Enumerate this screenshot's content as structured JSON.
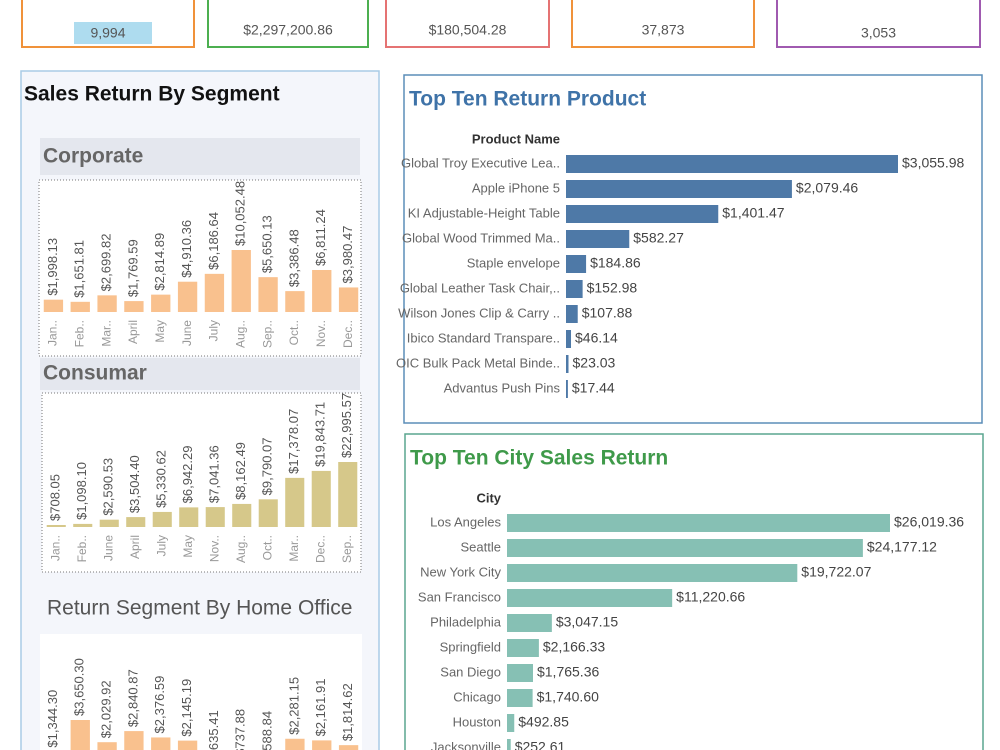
{
  "kpis": [
    {
      "value": "9,994",
      "color": "#f0923a"
    },
    {
      "value": "$2,297,200.86",
      "color": "#4caf50"
    },
    {
      "value": "$180,504.28",
      "color": "#e57373"
    },
    {
      "value": "37,873",
      "color": "#f0923a"
    },
    {
      "value": "3,053",
      "color": "#a05ab0"
    }
  ],
  "segment_panel": {
    "title": "Sales Return By Segment"
  },
  "chart_data": [
    {
      "type": "bar",
      "title": "Corporate",
      "color": "#f9c18e",
      "categories": [
        "Jan..",
        "Feb..",
        "Mar..",
        "April",
        "May",
        "June",
        "July",
        "Aug..",
        "Sep..",
        "Oct..",
        "Nov..",
        "Dec.."
      ],
      "values": [
        1998.13,
        1651.81,
        2699.82,
        1769.59,
        2814.89,
        4910.36,
        6186.64,
        10052.48,
        5650.13,
        3386.48,
        6811.24,
        3980.47
      ],
      "value_labels": [
        "$1,998.13",
        "$1,651.81",
        "$2,699.82",
        "$1,769.59",
        "$2,814.89",
        "$4,910.36",
        "$6,186.64",
        "$10,052.48",
        "$5,650.13",
        "$3,386.48",
        "$6,811.24",
        "$3,980.47"
      ]
    },
    {
      "type": "bar",
      "title": "Consumar",
      "color": "#d6c88a",
      "categories": [
        "Jan..",
        "Feb..",
        "June",
        "April",
        "July",
        "May",
        "Nov..",
        "Aug..",
        "Oct..",
        "Mar..",
        "Dec..",
        "Sep.."
      ],
      "values": [
        708.05,
        1098.1,
        2590.53,
        3504.4,
        5330.62,
        6942.29,
        7041.36,
        8162.49,
        9790.07,
        17378.07,
        19843.71,
        22995.57
      ],
      "value_labels": [
        "$708.05",
        "$1,098.10",
        "$2,590.53",
        "$3,504.40",
        "$5,330.62",
        "$6,942.29",
        "$7,041.36",
        "$8,162.49",
        "$9,790.07",
        "$17,378.07",
        "$19,843.71",
        "$22,995.57"
      ]
    },
    {
      "type": "bar",
      "title": "Return Segment By Home Office",
      "color": "#f9c18e",
      "values": [
        1344.3,
        3650.3,
        2029.92,
        2840.87,
        2376.59,
        2145.19,
        635.41,
        737.88,
        588.84,
        2281.15,
        2161.91,
        1814.62
      ],
      "value_labels": [
        "$1,344.30",
        "$3,650.30",
        "$2,029.92",
        "$2,840.87",
        "$2,376.59",
        "$2,145.19",
        "$635.41",
        "$737.88",
        "$588.84",
        "$2,281.15",
        "$2,161.91",
        "$1,814.62"
      ]
    },
    {
      "type": "barh",
      "title": "Top Ten Return Product",
      "axis_label": "Product Name",
      "color": "#4e79a7",
      "categories": [
        "Global Troy Executive Lea..",
        "Apple iPhone 5",
        "KI Adjustable-Height Table",
        "Global Wood Trimmed Ma..",
        "Staple envelope",
        "Global Leather Task Chair,..",
        "Wilson Jones Clip & Carry ..",
        "Ibico Standard Transpare..",
        "OIC Bulk Pack Metal Binde..",
        "Advantus Push Pins"
      ],
      "values": [
        3055.98,
        2079.46,
        1401.47,
        582.27,
        184.86,
        152.98,
        107.88,
        46.14,
        23.03,
        17.44
      ],
      "value_labels": [
        "$3,055.98",
        "$2,079.46",
        "$1,401.47",
        "$582.27",
        "$184.86",
        "$152.98",
        "$107.88",
        "$46.14",
        "$23.03",
        "$17.44"
      ]
    },
    {
      "type": "barh",
      "title": "Top Ten City Sales Return",
      "axis_label": "City",
      "color": "#86c0b4",
      "categories": [
        "Los Angeles",
        "Seattle",
        "New York City",
        "San Francisco",
        "Philadelphia",
        "Springfield",
        "San Diego",
        "Chicago",
        "Houston",
        "Jacksonville"
      ],
      "values": [
        26019.36,
        24177.12,
        19722.07,
        11220.66,
        3047.15,
        2166.33,
        1765.36,
        1740.6,
        492.85,
        252.61
      ],
      "value_labels": [
        "$26,019.36",
        "$24,177.12",
        "$19,722.07",
        "$11,220.66",
        "$3,047.15",
        "$2,166.33",
        "$1,765.36",
        "$1,740.60",
        "$492.85",
        "$252.61"
      ]
    }
  ]
}
